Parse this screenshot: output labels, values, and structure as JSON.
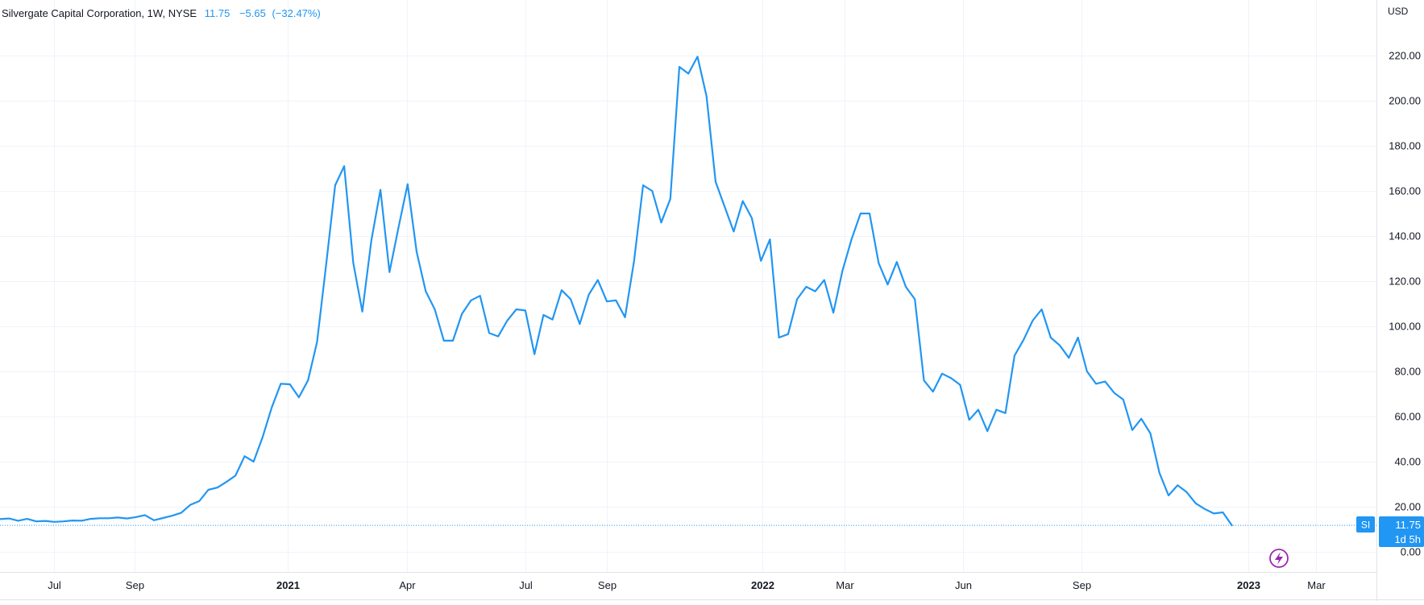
{
  "legend": {
    "name": "Silvergate Capital Corporation",
    "interval": "1W",
    "exchange": "NYSE",
    "last": "11.75",
    "change": "−5.65",
    "change_pct": "(−32.47%)"
  },
  "price_axis": {
    "currency": "USD",
    "badge_symbol": "SI",
    "badge_price": "11.75",
    "badge_countdown": "1d 5h"
  },
  "colors": {
    "line": "#2196f3",
    "grid": "#f0f3fa",
    "axis_text": "#131722",
    "event_icon": "#9c27b0",
    "badge_bg": "#2196f3"
  },
  "icons": {
    "event": "lightning-icon"
  },
  "chart_data": {
    "type": "line",
    "title": "Silvergate Capital Corporation, 1W, NYSE",
    "xlabel": "",
    "ylabel": "",
    "ylim": [
      -8,
      222
    ],
    "y_ticks": [
      0,
      20,
      40,
      60,
      80,
      100,
      120,
      140,
      160,
      180,
      200,
      220
    ],
    "y_tick_labels": [
      "0.00",
      "20.00",
      "40.00",
      "60.00",
      "80.00",
      "100.00",
      "120.00",
      "140.00",
      "160.00",
      "180.00",
      "200.00",
      "220.00"
    ],
    "x_ticks": [
      "Jul",
      "Sep",
      "2021",
      "Apr",
      "Jul",
      "Sep",
      "2022",
      "Mar",
      "Jun",
      "Sep",
      "2023",
      "Mar"
    ],
    "x_tick_bold": [
      false,
      false,
      true,
      false,
      false,
      false,
      true,
      false,
      false,
      false,
      true,
      false
    ],
    "grid": true,
    "legend": "top-left",
    "series": [
      {
        "name": "SI",
        "values": [
          14.5,
          14.8,
          13.8,
          14.6,
          13.5,
          13.7,
          13.3,
          13.5,
          13.9,
          13.8,
          14.6,
          14.9,
          14.9,
          15.2,
          14.8,
          15.4,
          16.3,
          14.0,
          15.0,
          16.0,
          17.3,
          20.8,
          22.5,
          27.5,
          28.5,
          31.0,
          33.8,
          42.4,
          40.0,
          51.0,
          64.0,
          74.5,
          74.3,
          68.5,
          76.0,
          93.0,
          127.0,
          162.5,
          171.0,
          128.0,
          106.5,
          138.0,
          160.5,
          124.0,
          144.0,
          163.0,
          133.0,
          115.5,
          107.5,
          93.6,
          93.6,
          105.5,
          111.5,
          113.5,
          97.0,
          95.5,
          102.5,
          107.5,
          107.0,
          87.6,
          105.0,
          103.0,
          116.0,
          112.0,
          101.0,
          114.0,
          120.5,
          111.0,
          111.5,
          104.0,
          129.0,
          162.5,
          160.0,
          146.0,
          156.5,
          215.0,
          212.0,
          219.5,
          202.0,
          164.0,
          153.0,
          142.0,
          155.5,
          148.0,
          129.0,
          138.5,
          95.0,
          96.5,
          112.0,
          117.5,
          115.5,
          120.5,
          106.0,
          124.5,
          138.5,
          150.0,
          150.0,
          128.0,
          118.5,
          128.5,
          117.5,
          112.0,
          76.0,
          71.0,
          79.0,
          77.0,
          74.0,
          58.5,
          63.0,
          53.5,
          63.0,
          61.5,
          87.0,
          94.0,
          102.5,
          107.5,
          95.0,
          91.5,
          86.0,
          95.0,
          80.0,
          74.5,
          75.5,
          70.5,
          67.5,
          54.0,
          59.0,
          52.5,
          35.0,
          25.0,
          29.5,
          26.5,
          21.5,
          19.0,
          17.0,
          17.5,
          11.75
        ]
      }
    ]
  }
}
